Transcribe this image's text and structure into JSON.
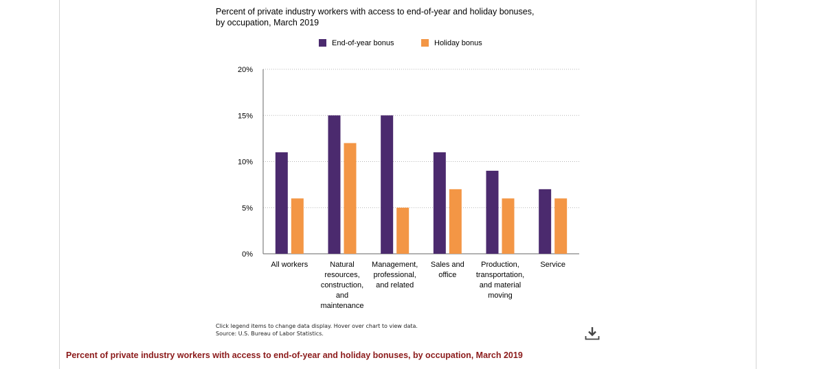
{
  "chart_data": {
    "type": "bar",
    "title": "Percent of private industry workers with access to end-of-year and holiday bonuses, by occupation, March 2019",
    "categories": [
      [
        "All workers"
      ],
      [
        "Natural",
        "resources,",
        "construction,",
        "and",
        "maintenance"
      ],
      [
        "Management,",
        "professional,",
        "and related"
      ],
      [
        "Sales and",
        "office"
      ],
      [
        "Production,",
        "transportation,",
        "and material",
        "moving"
      ],
      [
        "Service"
      ]
    ],
    "series": [
      {
        "name": "End-of-year bonus",
        "color": "#4b2a6e",
        "values": [
          11,
          15,
          15,
          11,
          9,
          7
        ]
      },
      {
        "name": "Holiday bonus",
        "color": "#f39645",
        "values": [
          6,
          12,
          5,
          7,
          6,
          6
        ]
      }
    ],
    "yticks": [
      "0%",
      "5%",
      "10%",
      "15%",
      "20%"
    ],
    "ylim": [
      0,
      20
    ],
    "grid": true,
    "legend_position": "top"
  },
  "footnote": {
    "line1": "Click legend items to change data display. Hover over chart to view data.",
    "line2": "Source: U.S. Bureau of Labor Statistics."
  },
  "download_icon": "download-icon",
  "table_caption": "Percent of private industry workers with access to end-of-year and holiday bonuses, by occupation, March 2019"
}
